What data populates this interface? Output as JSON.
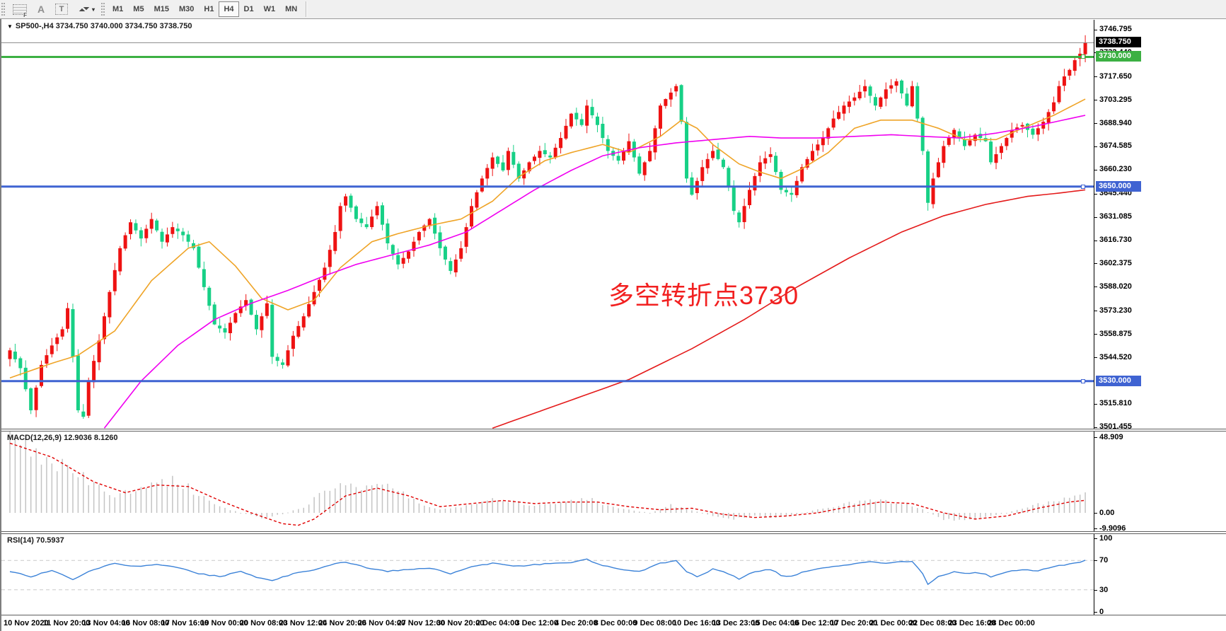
{
  "toolbar": {
    "icons": [
      {
        "name": "grid-f-icon"
      },
      {
        "name": "font-a-icon",
        "glyph": "A"
      },
      {
        "name": "text-label-icon",
        "glyph": "T"
      },
      {
        "name": "arrange-arrows-icon"
      },
      {
        "name": "dropdown-caret-icon",
        "glyph": "▾"
      }
    ],
    "timeframes": [
      "M1",
      "M5",
      "M15",
      "M30",
      "H1",
      "H4",
      "D1",
      "W1",
      "MN"
    ],
    "selected_timeframe": "H4"
  },
  "header": {
    "dropdown_glyph": "▼",
    "symbol": "SP500-,H4",
    "open": "3734.750",
    "high": "3740.000",
    "low": "3734.750",
    "close": "3738.750",
    "display": "SP500-,H4  3734.750 3740.000 3734.750 3738.750"
  },
  "annotation": {
    "text": "多空转折点3730",
    "color": "#f22020"
  },
  "price_axis": {
    "ticks": [
      "3746.795",
      "3732.440",
      "3717.650",
      "3703.295",
      "3688.940",
      "3674.585",
      "3660.230",
      "3645.440",
      "3631.085",
      "3616.730",
      "3602.375",
      "3588.020",
      "3573.230",
      "3558.875",
      "3544.520",
      "3515.810",
      "3501.455"
    ],
    "bid_badge": {
      "label": "3738.750",
      "price": 3738.75,
      "bg": "#000000"
    }
  },
  "hlines": [
    {
      "label": "3730.000",
      "price": 3730.0,
      "color": "#3cb043"
    },
    {
      "label": "3650.000",
      "price": 3650.0,
      "color": "#3f63d2"
    },
    {
      "label": "3530.000",
      "price": 3530.0,
      "color": "#3f63d2"
    }
  ],
  "macd_panel": {
    "title": "MACD(12,26,9) 12.9036 8.1260",
    "axis_labels": [
      {
        "text": "48.909",
        "value": 48.909
      },
      {
        "text": "0.00",
        "value": 0
      },
      {
        "text": "-9.9096",
        "value": -9.9096
      }
    ]
  },
  "rsi_panel": {
    "title": "RSI(14) 70.5937",
    "axis_labels": [
      {
        "text": "100",
        "value": 100
      },
      {
        "text": "70",
        "value": 70
      },
      {
        "text": "30",
        "value": 30
      },
      {
        "text": "0",
        "value": 0
      }
    ],
    "levels": [
      70,
      30
    ]
  },
  "time_axis": {
    "labels": [
      "10 Nov 2020",
      "11 Nov 20:00",
      "13 Nov 04:00",
      "16 Nov 08:00",
      "17 Nov 16:00",
      "19 Nov 00:00",
      "20 Nov 08:00",
      "23 Nov 12:00",
      "24 Nov 20:00",
      "26 Nov 04:00",
      "27 Nov 12:00",
      "30 Nov 20:00",
      "2 Dec 04:00",
      "3 Dec 12:00",
      "4 Dec 20:00",
      "8 Dec 00:00",
      "9 Dec 08:00",
      "10 Dec 16:00",
      "13 Dec 23:00",
      "15 Dec 04:00",
      "16 Dec 12:00",
      "17 Dec 20:00",
      "21 Dec 00:00",
      "22 Dec 08:00",
      "23 Dec 16:00",
      "28 Dec 00:00"
    ]
  },
  "chart_data": {
    "type": "candlestick",
    "symbol": "SP500",
    "timeframe": "H4",
    "bars": 206,
    "price_range": {
      "min": 3501.455,
      "max": 3746.795
    },
    "colors": {
      "bull": "#ee1212",
      "bear": "#17d086",
      "ma_fast": "#efa427",
      "ma_mid": "#f000f0",
      "ma_slow": "#e41a1a",
      "macd_hist": "#c4c4c4",
      "macd_signal": "#e00000",
      "rsi_line": "#3b82d8",
      "bid_line": "#8a8a8a"
    },
    "close_keyframes": [
      [
        0,
        3549
      ],
      [
        2,
        3538
      ],
      [
        4,
        3512
      ],
      [
        6,
        3540
      ],
      [
        8,
        3552
      ],
      [
        10,
        3562
      ],
      [
        11,
        3575
      ],
      [
        12,
        3545
      ],
      [
        13,
        3512
      ],
      [
        14,
        3508
      ],
      [
        15,
        3530
      ],
      [
        17,
        3555
      ],
      [
        19,
        3585
      ],
      [
        21,
        3612
      ],
      [
        23,
        3628
      ],
      [
        25,
        3618
      ],
      [
        27,
        3630
      ],
      [
        29,
        3616
      ],
      [
        31,
        3625
      ],
      [
        33,
        3620
      ],
      [
        35,
        3612
      ],
      [
        37,
        3588
      ],
      [
        39,
        3565
      ],
      [
        41,
        3560
      ],
      [
        43,
        3572
      ],
      [
        45,
        3580
      ],
      [
        47,
        3562
      ],
      [
        49,
        3578
      ],
      [
        50,
        3545
      ],
      [
        52,
        3540
      ],
      [
        54,
        3558
      ],
      [
        56,
        3570
      ],
      [
        58,
        3585
      ],
      [
        60,
        3600
      ],
      [
        62,
        3622
      ],
      [
        63,
        3638
      ],
      [
        64,
        3644
      ],
      [
        66,
        3630
      ],
      [
        68,
        3625
      ],
      [
        70,
        3638
      ],
      [
        72,
        3615
      ],
      [
        74,
        3602
      ],
      [
        76,
        3610
      ],
      [
        78,
        3622
      ],
      [
        80,
        3630
      ],
      [
        82,
        3612
      ],
      [
        84,
        3598
      ],
      [
        86,
        3612
      ],
      [
        88,
        3638
      ],
      [
        90,
        3655
      ],
      [
        92,
        3668
      ],
      [
        94,
        3660
      ],
      [
        95,
        3672
      ],
      [
        97,
        3655
      ],
      [
        99,
        3665
      ],
      [
        101,
        3672
      ],
      [
        103,
        3668
      ],
      [
        105,
        3680
      ],
      [
        107,
        3695
      ],
      [
        109,
        3688
      ],
      [
        110,
        3700
      ],
      [
        112,
        3688
      ],
      [
        114,
        3672
      ],
      [
        116,
        3666
      ],
      [
        118,
        3678
      ],
      [
        120,
        3658
      ],
      [
        122,
        3672
      ],
      [
        124,
        3700
      ],
      [
        126,
        3708
      ],
      [
        127,
        3712
      ],
      [
        128,
        3690
      ],
      [
        129,
        3655
      ],
      [
        130,
        3645
      ],
      [
        132,
        3662
      ],
      [
        134,
        3672
      ],
      [
        136,
        3662
      ],
      [
        137,
        3650
      ],
      [
        138,
        3635
      ],
      [
        139,
        3628
      ],
      [
        141,
        3648
      ],
      [
        143,
        3665
      ],
      [
        145,
        3670
      ],
      [
        147,
        3648
      ],
      [
        149,
        3645
      ],
      [
        151,
        3662
      ],
      [
        153,
        3672
      ],
      [
        155,
        3680
      ],
      [
        157,
        3692
      ],
      [
        159,
        3700
      ],
      [
        161,
        3705
      ],
      [
        163,
        3712
      ],
      [
        165,
        3700
      ],
      [
        167,
        3710
      ],
      [
        169,
        3715
      ],
      [
        171,
        3700
      ],
      [
        172,
        3712
      ],
      [
        174,
        3672
      ],
      [
        175,
        3640
      ],
      [
        176,
        3655
      ],
      [
        178,
        3675
      ],
      [
        180,
        3685
      ],
      [
        182,
        3675
      ],
      [
        184,
        3682
      ],
      [
        186,
        3678
      ],
      [
        187,
        3665
      ],
      [
        189,
        3675
      ],
      [
        191,
        3685
      ],
      [
        193,
        3688
      ],
      [
        195,
        3682
      ],
      [
        197,
        3690
      ],
      [
        199,
        3702
      ],
      [
        200,
        3712
      ],
      [
        201,
        3718
      ],
      [
        202,
        3722
      ],
      [
        203,
        3728
      ],
      [
        204,
        3732
      ],
      [
        205,
        3738.8
      ]
    ],
    "ma_fast_keyframes": [
      [
        0,
        3532
      ],
      [
        8,
        3541
      ],
      [
        13,
        3546
      ],
      [
        20,
        3561
      ],
      [
        27,
        3592
      ],
      [
        34,
        3612
      ],
      [
        38,
        3616
      ],
      [
        43,
        3601
      ],
      [
        48,
        3581
      ],
      [
        53,
        3574
      ],
      [
        58,
        3580
      ],
      [
        63,
        3600
      ],
      [
        69,
        3616
      ],
      [
        74,
        3621
      ],
      [
        80,
        3626
      ],
      [
        86,
        3630
      ],
      [
        92,
        3641
      ],
      [
        97,
        3656
      ],
      [
        102,
        3666
      ],
      [
        107,
        3671
      ],
      [
        113,
        3676
      ],
      [
        118,
        3671
      ],
      [
        124,
        3681
      ],
      [
        128,
        3691
      ],
      [
        131,
        3686
      ],
      [
        134,
        3676
      ],
      [
        139,
        3664
      ],
      [
        143,
        3659
      ],
      [
        147,
        3655
      ],
      [
        151,
        3661
      ],
      [
        156,
        3671
      ],
      [
        161,
        3686
      ],
      [
        166,
        3691
      ],
      [
        172,
        3691
      ],
      [
        177,
        3686
      ],
      [
        182,
        3679
      ],
      [
        188,
        3679
      ],
      [
        193,
        3686
      ],
      [
        199,
        3694
      ],
      [
        205,
        3704
      ]
    ],
    "ma_mid_keyframes": [
      [
        18,
        3501
      ],
      [
        25,
        3530
      ],
      [
        32,
        3552
      ],
      [
        39,
        3568
      ],
      [
        46,
        3578
      ],
      [
        53,
        3586
      ],
      [
        60,
        3595
      ],
      [
        66,
        3602
      ],
      [
        73,
        3608
      ],
      [
        80,
        3614
      ],
      [
        87,
        3622
      ],
      [
        93,
        3634
      ],
      [
        100,
        3648
      ],
      [
        107,
        3660
      ],
      [
        113,
        3669
      ],
      [
        120,
        3674
      ],
      [
        127,
        3677
      ],
      [
        134,
        3679
      ],
      [
        141,
        3681
      ],
      [
        147,
        3680
      ],
      [
        154,
        3680
      ],
      [
        161,
        3681
      ],
      [
        168,
        3682
      ],
      [
        174,
        3681
      ],
      [
        181,
        3680
      ],
      [
        188,
        3683
      ],
      [
        195,
        3687
      ],
      [
        205,
        3694
      ]
    ],
    "ma_slow_keyframes": [
      [
        92,
        3501
      ],
      [
        105,
        3516
      ],
      [
        118,
        3531
      ],
      [
        130,
        3550
      ],
      [
        140,
        3568
      ],
      [
        150,
        3588
      ],
      [
        160,
        3606
      ],
      [
        170,
        3622
      ],
      [
        178,
        3632
      ],
      [
        186,
        3639
      ],
      [
        194,
        3644
      ],
      [
        200,
        3646
      ],
      [
        205,
        3648
      ]
    ],
    "macd": {
      "range": {
        "max": 48.909,
        "min": -9.9096
      },
      "hist_keyframes": [
        [
          0,
          46
        ],
        [
          6,
          38
        ],
        [
          12,
          26
        ],
        [
          18,
          14
        ],
        [
          20,
          10
        ],
        [
          24,
          16
        ],
        [
          28,
          22
        ],
        [
          32,
          20
        ],
        [
          36,
          12
        ],
        [
          40,
          4
        ],
        [
          44,
          0
        ],
        [
          48,
          -3
        ],
        [
          52,
          -1
        ],
        [
          56,
          4
        ],
        [
          60,
          14
        ],
        [
          64,
          19
        ],
        [
          68,
          17
        ],
        [
          71,
          19
        ],
        [
          74,
          14
        ],
        [
          78,
          6
        ],
        [
          82,
          2
        ],
        [
          86,
          4
        ],
        [
          90,
          8
        ],
        [
          94,
          9
        ],
        [
          98,
          6
        ],
        [
          102,
          5
        ],
        [
          106,
          8
        ],
        [
          110,
          9
        ],
        [
          114,
          5
        ],
        [
          118,
          2
        ],
        [
          122,
          0
        ],
        [
          126,
          5
        ],
        [
          130,
          2
        ],
        [
          134,
          -2
        ],
        [
          138,
          -4
        ],
        [
          142,
          -2
        ],
        [
          146,
          -3
        ],
        [
          150,
          -1
        ],
        [
          154,
          2
        ],
        [
          158,
          5
        ],
        [
          162,
          7
        ],
        [
          166,
          8
        ],
        [
          170,
          7
        ],
        [
          174,
          2
        ],
        [
          178,
          -4
        ],
        [
          182,
          -5
        ],
        [
          186,
          -3
        ],
        [
          190,
          0
        ],
        [
          194,
          4
        ],
        [
          198,
          7
        ],
        [
          202,
          11
        ],
        [
          205,
          13
        ]
      ],
      "signal_keyframes": [
        [
          0,
          45
        ],
        [
          8,
          36
        ],
        [
          16,
          20
        ],
        [
          22,
          13
        ],
        [
          28,
          18
        ],
        [
          34,
          17
        ],
        [
          40,
          8
        ],
        [
          46,
          0
        ],
        [
          52,
          -7
        ],
        [
          55,
          -8
        ],
        [
          58,
          -4
        ],
        [
          64,
          11
        ],
        [
          70,
          16
        ],
        [
          76,
          11
        ],
        [
          82,
          4
        ],
        [
          88,
          6
        ],
        [
          94,
          8
        ],
        [
          100,
          6
        ],
        [
          106,
          7
        ],
        [
          112,
          7
        ],
        [
          118,
          4
        ],
        [
          124,
          2
        ],
        [
          130,
          3
        ],
        [
          136,
          -1
        ],
        [
          142,
          -3
        ],
        [
          148,
          -2
        ],
        [
          154,
          0
        ],
        [
          160,
          4
        ],
        [
          166,
          7
        ],
        [
          172,
          6
        ],
        [
          178,
          0
        ],
        [
          184,
          -4
        ],
        [
          190,
          -2
        ],
        [
          196,
          3
        ],
        [
          202,
          7
        ],
        [
          205,
          8.1
        ]
      ]
    },
    "rsi_keyframes": [
      [
        0,
        55
      ],
      [
        4,
        48
      ],
      [
        8,
        57
      ],
      [
        12,
        44
      ],
      [
        16,
        58
      ],
      [
        20,
        66
      ],
      [
        24,
        62
      ],
      [
        28,
        65
      ],
      [
        32,
        60
      ],
      [
        36,
        52
      ],
      [
        40,
        48
      ],
      [
        44,
        55
      ],
      [
        48,
        45
      ],
      [
        50,
        42
      ],
      [
        54,
        52
      ],
      [
        58,
        57
      ],
      [
        62,
        65
      ],
      [
        64,
        68
      ],
      [
        68,
        60
      ],
      [
        72,
        55
      ],
      [
        76,
        58
      ],
      [
        80,
        60
      ],
      [
        84,
        52
      ],
      [
        88,
        62
      ],
      [
        92,
        66
      ],
      [
        96,
        62
      ],
      [
        100,
        64
      ],
      [
        104,
        66
      ],
      [
        108,
        68
      ],
      [
        110,
        72
      ],
      [
        112,
        65
      ],
      [
        116,
        58
      ],
      [
        120,
        55
      ],
      [
        124,
        66
      ],
      [
        127,
        70
      ],
      [
        129,
        55
      ],
      [
        131,
        48
      ],
      [
        134,
        58
      ],
      [
        137,
        52
      ],
      [
        139,
        45
      ],
      [
        142,
        55
      ],
      [
        145,
        58
      ],
      [
        147,
        50
      ],
      [
        149,
        48
      ],
      [
        152,
        56
      ],
      [
        155,
        60
      ],
      [
        158,
        63
      ],
      [
        161,
        65
      ],
      [
        164,
        68
      ],
      [
        167,
        66
      ],
      [
        170,
        68
      ],
      [
        172,
        69
      ],
      [
        174,
        52
      ],
      [
        175,
        38
      ],
      [
        177,
        48
      ],
      [
        180,
        55
      ],
      [
        182,
        52
      ],
      [
        184,
        54
      ],
      [
        186,
        52
      ],
      [
        187,
        47
      ],
      [
        189,
        52
      ],
      [
        191,
        56
      ],
      [
        194,
        57
      ],
      [
        196,
        56
      ],
      [
        198,
        60
      ],
      [
        200,
        63
      ],
      [
        202,
        65
      ],
      [
        203,
        66
      ],
      [
        204,
        68
      ],
      [
        205,
        71
      ]
    ]
  }
}
